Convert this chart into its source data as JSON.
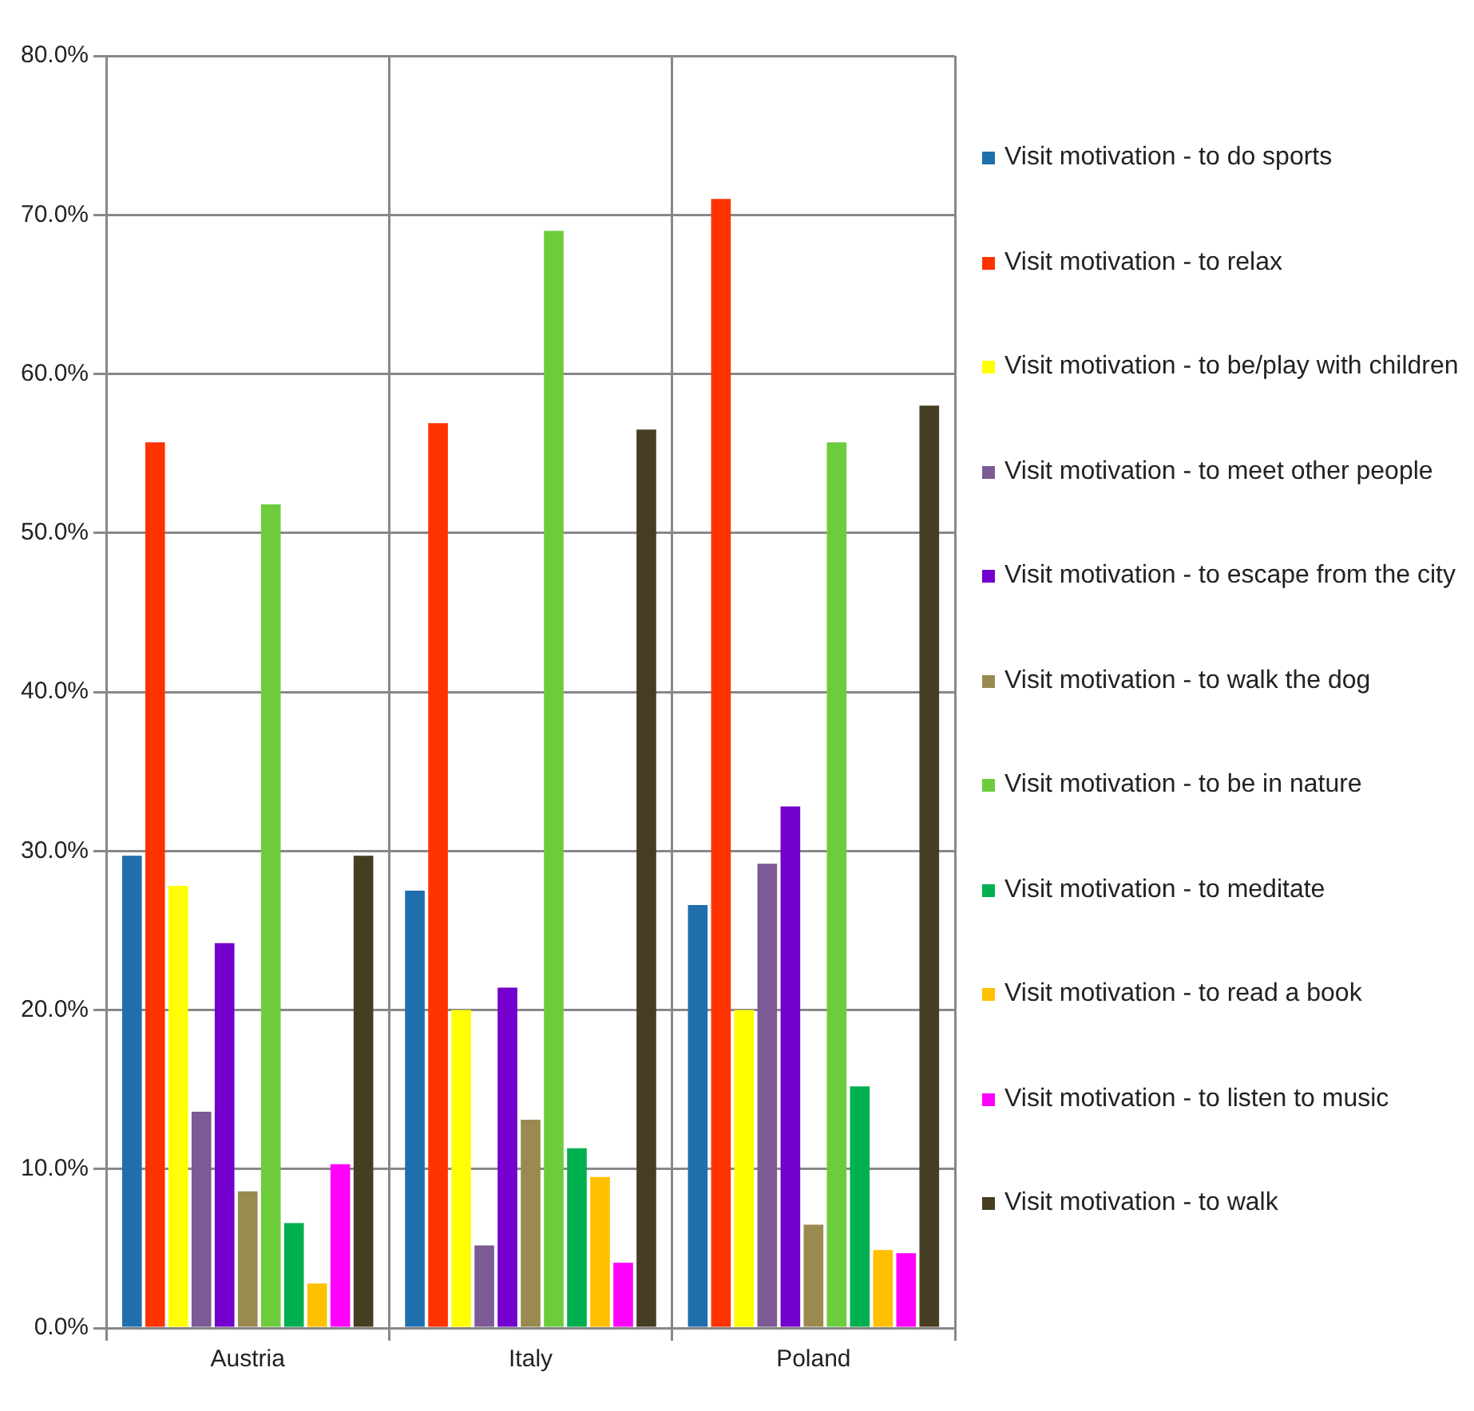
{
  "chart_data": {
    "type": "bar",
    "categories": [
      "Austria",
      "Italy",
      "Poland"
    ],
    "series": [
      {
        "name": "Visit motivation - to do sports",
        "color": "#1f6fad",
        "values": [
          29.7,
          27.5,
          26.6
        ]
      },
      {
        "name": "Visit motivation - to relax",
        "color": "#ff3300",
        "values": [
          55.7,
          56.9,
          71.0
        ]
      },
      {
        "name": "Visit motivation - to be/play with children",
        "color": "#ffff00",
        "values": [
          27.8,
          20.0,
          20.0
        ]
      },
      {
        "name": "Visit motivation - to meet other people",
        "color": "#7b5a96",
        "values": [
          13.6,
          5.2,
          29.2
        ]
      },
      {
        "name": "Visit motivation - to escape from the city",
        "color": "#7300cc",
        "values": [
          24.2,
          21.4,
          32.8
        ]
      },
      {
        "name": "Visit motivation - to walk the dog",
        "color": "#9a8a50",
        "values": [
          8.6,
          13.1,
          6.5
        ]
      },
      {
        "name": "Visit motivation - to be in nature",
        "color": "#6dcc3c",
        "values": [
          51.8,
          69.0,
          55.7
        ]
      },
      {
        "name": "Visit motivation - to meditate",
        "color": "#00b050",
        "values": [
          6.6,
          11.3,
          15.2
        ]
      },
      {
        "name": "Visit motivation - to read a book",
        "color": "#ffc000",
        "values": [
          2.8,
          9.5,
          4.9
        ]
      },
      {
        "name": "Visit motivation - to listen to music",
        "color": "#ff00ff",
        "values": [
          10.3,
          4.1,
          4.7
        ]
      },
      {
        "name": "Visit motivation - to walk",
        "color": "#463e22",
        "values": [
          29.7,
          56.5,
          58.0
        ]
      }
    ],
    "ylim": [
      0,
      80
    ],
    "yticks": [
      {
        "value": 0,
        "label": "0.0%"
      },
      {
        "value": 10,
        "label": "10.0%"
      },
      {
        "value": 20,
        "label": "20.0%"
      },
      {
        "value": 30,
        "label": "30.0%"
      },
      {
        "value": 40,
        "label": "40.0%"
      },
      {
        "value": 50,
        "label": "50.0%"
      },
      {
        "value": 60,
        "label": "60.0%"
      },
      {
        "value": 70,
        "label": "70.0%"
      },
      {
        "value": 80,
        "label": "80.0%"
      }
    ],
    "grid": true,
    "legend": "right"
  }
}
